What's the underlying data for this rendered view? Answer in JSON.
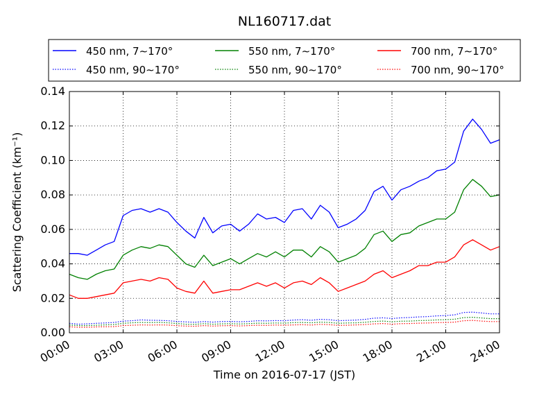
{
  "chart_data": {
    "type": "line",
    "title": "NL160717.dat",
    "xlabel": "Time on 2016-07-17 (JST)",
    "ylabel": "Scattering Coefficient (km⁻¹)",
    "xlim": [
      0,
      24
    ],
    "ylim": [
      0,
      0.14
    ],
    "x_ticks": [
      0,
      3,
      6,
      9,
      12,
      15,
      18,
      21,
      24
    ],
    "x_tick_labels": [
      "00:00",
      "03:00",
      "06:00",
      "09:00",
      "12:00",
      "15:00",
      "18:00",
      "21:00",
      "24:00"
    ],
    "y_ticks": [
      0,
      0.02,
      0.04,
      0.06,
      0.08,
      0.1,
      0.12,
      0.14
    ],
    "y_tick_labels": [
      "0.00",
      "0.02",
      "0.04",
      "0.06",
      "0.08",
      "0.10",
      "0.12",
      "0.14"
    ],
    "grid": true,
    "legend_position": "top, above plot, 3 columns",
    "x": [
      0,
      0.5,
      1,
      1.5,
      2,
      2.5,
      3,
      3.5,
      4,
      4.5,
      5,
      5.5,
      6,
      6.5,
      7,
      7.5,
      8,
      8.5,
      9,
      9.5,
      10,
      10.5,
      11,
      11.5,
      12,
      12.5,
      13,
      13.5,
      14,
      14.5,
      15,
      15.5,
      16,
      16.5,
      17,
      17.5,
      18,
      18.5,
      19,
      19.5,
      20,
      20.5,
      21,
      21.5,
      22,
      22.5,
      23,
      23.5,
      24
    ],
    "series": [
      {
        "name": "450 nm, 7∼170°",
        "color": "#0000ff",
        "style": "solid",
        "values": [
          0.046,
          0.046,
          0.045,
          0.048,
          0.051,
          0.053,
          0.068,
          0.071,
          0.072,
          0.07,
          0.072,
          0.07,
          0.064,
          0.059,
          0.055,
          0.067,
          0.058,
          0.062,
          0.063,
          0.059,
          0.063,
          0.069,
          0.066,
          0.067,
          0.064,
          0.071,
          0.072,
          0.066,
          0.074,
          0.07,
          0.061,
          0.063,
          0.066,
          0.071,
          0.082,
          0.085,
          0.077,
          0.083,
          0.085,
          0.088,
          0.09,
          0.094,
          0.095,
          0.099,
          0.117,
          0.124,
          0.118,
          0.11,
          0.112
        ]
      },
      {
        "name": "450 nm, 90∼170°",
        "color": "#0000ff",
        "style": "dotted",
        "values": [
          0.0055,
          0.005,
          0.0052,
          0.0055,
          0.0057,
          0.006,
          0.0068,
          0.007,
          0.0075,
          0.0073,
          0.0072,
          0.007,
          0.0066,
          0.0063,
          0.0061,
          0.0065,
          0.0062,
          0.0065,
          0.0066,
          0.0064,
          0.0066,
          0.007,
          0.0069,
          0.0071,
          0.007,
          0.0074,
          0.0076,
          0.0073,
          0.0078,
          0.0076,
          0.007,
          0.0072,
          0.0074,
          0.0078,
          0.0085,
          0.0087,
          0.0083,
          0.0087,
          0.0089,
          0.0092,
          0.0094,
          0.0098,
          0.01,
          0.0104,
          0.0118,
          0.012,
          0.0115,
          0.011,
          0.011
        ]
      },
      {
        "name": "550 nm, 7∼170°",
        "color": "#008000",
        "style": "solid",
        "values": [
          0.034,
          0.032,
          0.031,
          0.034,
          0.036,
          0.037,
          0.045,
          0.048,
          0.05,
          0.049,
          0.051,
          0.05,
          0.045,
          0.04,
          0.038,
          0.045,
          0.039,
          0.041,
          0.043,
          0.04,
          0.043,
          0.046,
          0.044,
          0.047,
          0.044,
          0.048,
          0.048,
          0.044,
          0.05,
          0.047,
          0.041,
          0.043,
          0.045,
          0.049,
          0.057,
          0.059,
          0.053,
          0.057,
          0.058,
          0.062,
          0.064,
          0.066,
          0.066,
          0.07,
          0.083,
          0.089,
          0.085,
          0.079,
          0.08
        ]
      },
      {
        "name": "550 nm, 90∼170°",
        "color": "#008000",
        "style": "dotted",
        "values": [
          0.0045,
          0.0042,
          0.0042,
          0.0044,
          0.0046,
          0.0048,
          0.0055,
          0.0058,
          0.006,
          0.0059,
          0.006,
          0.0058,
          0.0054,
          0.005,
          0.0049,
          0.0053,
          0.005,
          0.0052,
          0.0053,
          0.0051,
          0.0053,
          0.0056,
          0.0055,
          0.0057,
          0.0056,
          0.0059,
          0.006,
          0.0058,
          0.0062,
          0.006,
          0.0055,
          0.0057,
          0.0058,
          0.0061,
          0.0066,
          0.0068,
          0.0064,
          0.0067,
          0.0068,
          0.0071,
          0.0072,
          0.0075,
          0.0076,
          0.0079,
          0.0088,
          0.009,
          0.0086,
          0.0082,
          0.0082
        ]
      },
      {
        "name": "700 nm, 7∼170°",
        "color": "#ff0000",
        "style": "solid",
        "values": [
          0.022,
          0.02,
          0.02,
          0.021,
          0.022,
          0.023,
          0.029,
          0.03,
          0.031,
          0.03,
          0.032,
          0.031,
          0.026,
          0.024,
          0.023,
          0.03,
          0.023,
          0.024,
          0.025,
          0.025,
          0.027,
          0.029,
          0.027,
          0.029,
          0.026,
          0.029,
          0.03,
          0.028,
          0.032,
          0.029,
          0.024,
          0.026,
          0.028,
          0.03,
          0.034,
          0.036,
          0.032,
          0.034,
          0.036,
          0.039,
          0.039,
          0.041,
          0.041,
          0.044,
          0.051,
          0.054,
          0.051,
          0.048,
          0.05
        ]
      },
      {
        "name": "700 nm, 90∼170°",
        "color": "#ff0000",
        "style": "dotted",
        "values": [
          0.0035,
          0.0032,
          0.0032,
          0.0034,
          0.0035,
          0.0036,
          0.0042,
          0.0044,
          0.0046,
          0.0045,
          0.0046,
          0.0045,
          0.0041,
          0.0039,
          0.0038,
          0.0042,
          0.0039,
          0.0041,
          0.0042,
          0.004,
          0.0042,
          0.0044,
          0.0043,
          0.0045,
          0.0044,
          0.0046,
          0.0047,
          0.0045,
          0.0049,
          0.0047,
          0.0043,
          0.0044,
          0.0046,
          0.0048,
          0.0052,
          0.0054,
          0.005,
          0.0053,
          0.0054,
          0.0056,
          0.0057,
          0.0059,
          0.006,
          0.0062,
          0.007,
          0.0072,
          0.0068,
          0.0065,
          0.0065
        ]
      }
    ],
    "legend_order": [
      0,
      2,
      4,
      1,
      3,
      5
    ]
  }
}
